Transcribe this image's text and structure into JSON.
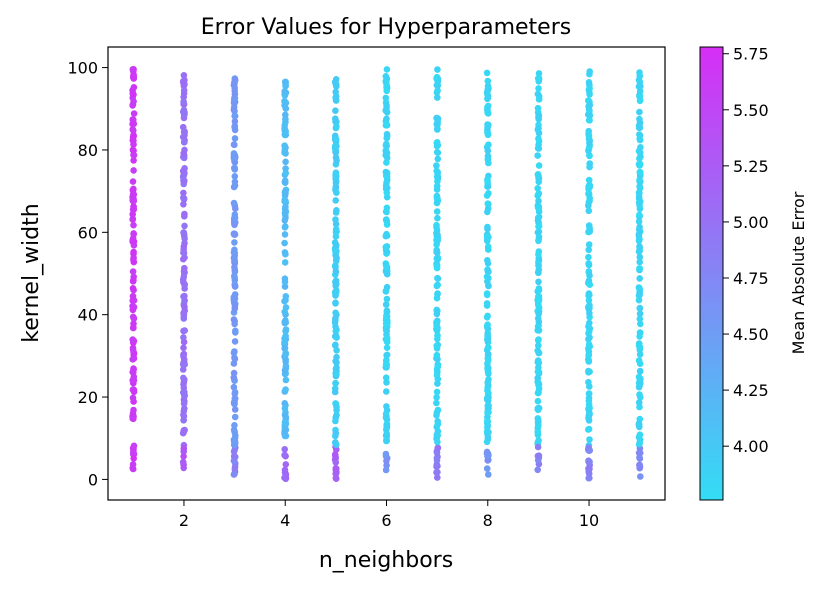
{
  "chart_data": {
    "type": "scatter",
    "title": "Error Values for Hyperparameters",
    "xlabel": "n_neighbors",
    "ylabel": "kernel_width",
    "xlim": [
      0.5,
      11.5
    ],
    "ylim": [
      -5,
      105
    ],
    "xticks": [
      2,
      4,
      6,
      8,
      10
    ],
    "yticks": [
      0,
      20,
      40,
      60,
      80,
      100
    ],
    "grid": false,
    "colormap": "cool",
    "colorbar": {
      "label": "Mean Absolute Error",
      "range": [
        3.76,
        5.78
      ],
      "ticks": [
        "4.00",
        "4.25",
        "4.50",
        "4.75",
        "5.00",
        "5.25",
        "5.50",
        "5.75"
      ],
      "tick_values": [
        4.0,
        4.25,
        4.5,
        4.75,
        5.0,
        5.25,
        5.5,
        5.75
      ]
    },
    "colors": {
      "low": "#33ddf5",
      "high": "#d62ef5"
    },
    "series": [
      {
        "n_neighbors": 1,
        "kernel_width_range": [
          2,
          100
        ],
        "mae_typical": 5.65,
        "mae_low_kernel": 5.65
      },
      {
        "n_neighbors": 2,
        "kernel_width_range": [
          1,
          100
        ],
        "mae_typical": 5.0,
        "mae_low_kernel": 5.3
      },
      {
        "n_neighbors": 3,
        "kernel_width_range": [
          1,
          100
        ],
        "mae_typical": 4.55,
        "mae_low_kernel": 4.8
      },
      {
        "n_neighbors": 4,
        "kernel_width_range": [
          0,
          97
        ],
        "mae_typical": 4.15,
        "mae_low_kernel": 5.1
      },
      {
        "n_neighbors": 5,
        "kernel_width_range": [
          0,
          98
        ],
        "mae_typical": 3.95,
        "mae_low_kernel": 5.2
      },
      {
        "n_neighbors": 6,
        "kernel_width_range": [
          2,
          100
        ],
        "mae_typical": 3.85,
        "mae_low_kernel": 4.6
      },
      {
        "n_neighbors": 7,
        "kernel_width_range": [
          0,
          100
        ],
        "mae_typical": 3.85,
        "mae_low_kernel": 4.9
      },
      {
        "n_neighbors": 8,
        "kernel_width_range": [
          1,
          99
        ],
        "mae_typical": 3.85,
        "mae_low_kernel": 4.6
      },
      {
        "n_neighbors": 9,
        "kernel_width_range": [
          1,
          100
        ],
        "mae_typical": 3.85,
        "mae_low_kernel": 4.8
      },
      {
        "n_neighbors": 10,
        "kernel_width_range": [
          0,
          100
        ],
        "mae_typical": 3.85,
        "mae_low_kernel": 4.8
      },
      {
        "n_neighbors": 11,
        "kernel_width_range": [
          0,
          99
        ],
        "mae_typical": 3.85,
        "mae_low_kernel": 4.7
      }
    ]
  }
}
